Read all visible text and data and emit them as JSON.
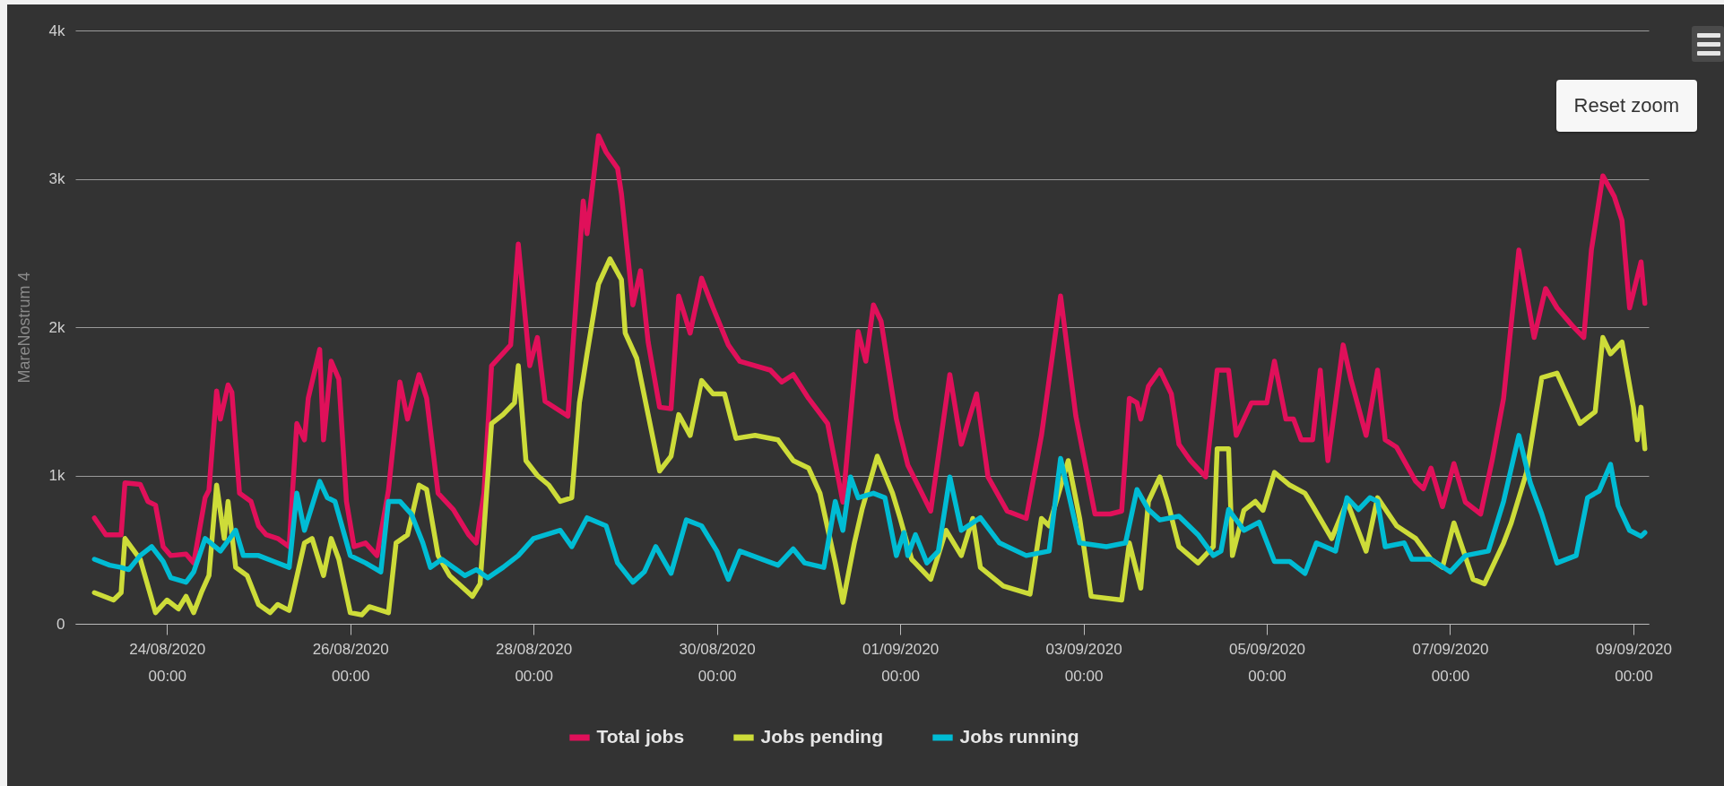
{
  "chart_data": {
    "type": "line",
    "ylabel": "MareNostrum 4",
    "annotations": [
      "Reset zoom"
    ],
    "xlim": [
      "2020-08-23T00:00",
      "2020-09-09T04:00"
    ],
    "xticks": [
      {
        "value": "2020-08-24T00:00",
        "label": "24/08/2020 00:00"
      },
      {
        "value": "2020-08-26T00:00",
        "label": "26/08/2020 00:00"
      },
      {
        "value": "2020-08-28T00:00",
        "label": "28/08/2020 00:00"
      },
      {
        "value": "2020-08-30T00:00",
        "label": "30/08/2020 00:00"
      },
      {
        "value": "2020-09-01T00:00",
        "label": "01/09/2020 00:00"
      },
      {
        "value": "2020-09-03T00:00",
        "label": "03/09/2020 00:00"
      },
      {
        "value": "2020-09-05T00:00",
        "label": "05/09/2020 00:00"
      },
      {
        "value": "2020-09-07T00:00",
        "label": "07/09/2020 00:00"
      },
      {
        "value": "2020-09-09T00:00",
        "label": "09/09/2020 00:00"
      }
    ],
    "ylim": [
      0,
      4000
    ],
    "yticks": [
      0,
      {
        "value": 1000,
        "label": "1k"
      },
      {
        "value": 2000,
        "label": "2k"
      },
      {
        "value": 3000,
        "label": "3k"
      },
      {
        "value": 4000,
        "label": "4k"
      }
    ],
    "grid": "y",
    "legend": "bottom",
    "series": [
      {
        "name": "Total jobs",
        "color": "#e0105a",
        "x": [
          "2020-08-23T05:00",
          "2020-08-23T08:00",
          "2020-08-23T12:00",
          "2020-08-23T13:00",
          "2020-08-23T17:00",
          "2020-08-23T19:00",
          "2020-08-23T21:00",
          "2020-08-23T23:00",
          "2020-08-24T01:00",
          "2020-08-24T05:00",
          "2020-08-24T07:00",
          "2020-08-24T10:00",
          "2020-08-24T11:00",
          "2020-08-24T13:00",
          "2020-08-24T14:00",
          "2020-08-24T16:00",
          "2020-08-24T17:00",
          "2020-08-24T19:00",
          "2020-08-24T22:00",
          "2020-08-25T00:00",
          "2020-08-25T02:00",
          "2020-08-25T05:00",
          "2020-08-25T08:00",
          "2020-08-25T10:00",
          "2020-08-25T12:00",
          "2020-08-25T13:00",
          "2020-08-25T16:00",
          "2020-08-25T17:00",
          "2020-08-25T19:00",
          "2020-08-25T21:00",
          "2020-08-25T23:00",
          "2020-08-26T01:00",
          "2020-08-26T04:00",
          "2020-08-26T07:00",
          "2020-08-26T10:00",
          "2020-08-26T13:00",
          "2020-08-26T15:00",
          "2020-08-26T18:00",
          "2020-08-26T20:00",
          "2020-08-26T23:00",
          "2020-08-27T03:00",
          "2020-08-27T07:00",
          "2020-08-27T09:00",
          "2020-08-27T11:00",
          "2020-08-27T13:00",
          "2020-08-27T18:00",
          "2020-08-27T20:00",
          "2020-08-27T23:00",
          "2020-08-28T01:00",
          "2020-08-28T03:00",
          "2020-08-28T06:00",
          "2020-08-28T09:00",
          "2020-08-28T13:00",
          "2020-08-28T14:00",
          "2020-08-28T17:00",
          "2020-08-28T19:00",
          "2020-08-28T22:00",
          "2020-08-28T23:00",
          "2020-08-29T02:00",
          "2020-08-29T04:00",
          "2020-08-29T06:00",
          "2020-08-29T09:00",
          "2020-08-29T12:00",
          "2020-08-29T14:00",
          "2020-08-29T17:00",
          "2020-08-29T20:00",
          "2020-08-29T23:00",
          "2020-08-30T03:00",
          "2020-08-30T06:00",
          "2020-08-30T14:00",
          "2020-08-30T17:00",
          "2020-08-30T20:00",
          "2020-08-31T00:00",
          "2020-08-31T05:00",
          "2020-08-31T09:00",
          "2020-08-31T13:00",
          "2020-08-31T15:00",
          "2020-08-31T17:00",
          "2020-08-31T19:00",
          "2020-08-31T23:00",
          "2020-09-01T02:00",
          "2020-09-01T08:00",
          "2020-09-01T13:00",
          "2020-09-01T16:00",
          "2020-09-01T20:00",
          "2020-09-01T23:00",
          "2020-09-02T04:00",
          "2020-09-02T09:00",
          "2020-09-02T13:00",
          "2020-09-02T18:00",
          "2020-09-02T22:00",
          "2020-09-03T03:00",
          "2020-09-03T07:00",
          "2020-09-03T10:00",
          "2020-09-03T12:00",
          "2020-09-03T14:00",
          "2020-09-03T15:00",
          "2020-09-03T17:00",
          "2020-09-03T20:00",
          "2020-09-03T23:00",
          "2020-09-04T01:00",
          "2020-09-04T04:00",
          "2020-09-04T08:00",
          "2020-09-04T11:00",
          "2020-09-04T14:00",
          "2020-09-04T16:00",
          "2020-09-04T20:00",
          "2020-09-05T00:00",
          "2020-09-05T02:00",
          "2020-09-05T05:00",
          "2020-09-05T07:00",
          "2020-09-05T09:00",
          "2020-09-05T12:00",
          "2020-09-05T14:00",
          "2020-09-05T16:00",
          "2020-09-05T20:00",
          "2020-09-05T22:00",
          "2020-09-06T02:00",
          "2020-09-06T05:00",
          "2020-09-06T07:00",
          "2020-09-06T10:00",
          "2020-09-06T15:00",
          "2020-09-06T17:00",
          "2020-09-06T19:00",
          "2020-09-06T22:00",
          "2020-09-07T01:00",
          "2020-09-07T04:00",
          "2020-09-07T08:00",
          "2020-09-07T11:00",
          "2020-09-07T14:00",
          "2020-09-07T18:00",
          "2020-09-07T22:00",
          "2020-09-08T01:00",
          "2020-09-08T04:00",
          "2020-09-08T08:00",
          "2020-09-08T11:00",
          "2020-09-08T13:00",
          "2020-09-08T16:00",
          "2020-09-08T19:00",
          "2020-09-08T21:00",
          "2020-09-08T23:00",
          "2020-09-09T02:00",
          "2020-09-09T03:00"
        ],
        "values": [
          713,
          600,
          600,
          950,
          940,
          825,
          800,
          520,
          460,
          470,
          410,
          850,
          900,
          1570,
          1380,
          1610,
          1560,
          880,
          825,
          660,
          600,
          575,
          520,
          1350,
          1240,
          1520,
          1850,
          1240,
          1770,
          1650,
          825,
          520,
          545,
          460,
          900,
          1630,
          1380,
          1680,
          1520,
          880,
          770,
          600,
          545,
          880,
          1740,
          1880,
          2560,
          1740,
          1930,
          1500,
          1450,
          1400,
          2850,
          2630,
          3290,
          3180,
          3070,
          2900,
          2150,
          2380,
          1900,
          1460,
          1450,
          2210,
          1960,
          2330,
          2130,
          1880,
          1770,
          1710,
          1630,
          1680,
          1520,
          1350,
          820,
          1970,
          1770,
          2150,
          2040,
          1380,
          1070,
          760,
          1680,
          1210,
          1550,
          990,
          760,
          710,
          1270,
          2210,
          1400,
          740,
          740,
          760,
          1520,
          1490,
          1380,
          1600,
          1710,
          1550,
          1210,
          1100,
          990,
          1710,
          1710,
          1270,
          1490,
          1490,
          1770,
          1380,
          1380,
          1240,
          1240,
          1710,
          1100,
          1880,
          1650,
          1270,
          1710,
          1240,
          1190,
          960,
          910,
          1050,
          790,
          1080,
          820,
          740,
          1100,
          1520,
          2520,
          1930,
          2260,
          2130,
          2010,
          1930,
          2520,
          3020,
          2880,
          2720,
          2130,
          2440,
          2160
        ]
      },
      {
        "name": "Jobs pending",
        "color": "#cddc39",
        "x": [
          "2020-08-23T05:00",
          "2020-08-23T10:00",
          "2020-08-23T12:00",
          "2020-08-23T13:00",
          "2020-08-23T17:00",
          "2020-08-23T21:00",
          "2020-08-24T00:00",
          "2020-08-24T03:00",
          "2020-08-24T05:00",
          "2020-08-24T07:00",
          "2020-08-24T09:00",
          "2020-08-24T11:00",
          "2020-08-24T13:00",
          "2020-08-24T15:00",
          "2020-08-24T16:00",
          "2020-08-24T18:00",
          "2020-08-24T21:00",
          "2020-08-25T00:00",
          "2020-08-25T03:00",
          "2020-08-25T05:00",
          "2020-08-25T08:00",
          "2020-08-25T12:00",
          "2020-08-25T14:00",
          "2020-08-25T17:00",
          "2020-08-25T19:00",
          "2020-08-25T21:00",
          "2020-08-26T00:00",
          "2020-08-26T03:00",
          "2020-08-26T05:00",
          "2020-08-26T10:00",
          "2020-08-26T12:00",
          "2020-08-26T15:00",
          "2020-08-26T18:00",
          "2020-08-26T20:00",
          "2020-08-26T23:00",
          "2020-08-27T02:00",
          "2020-08-27T08:00",
          "2020-08-27T10:00",
          "2020-08-27T13:00",
          "2020-08-27T16:00",
          "2020-08-27T19:00",
          "2020-08-27T20:00",
          "2020-08-27T22:00",
          "2020-08-28T01:00",
          "2020-08-28T04:00",
          "2020-08-28T07:00",
          "2020-08-28T10:00",
          "2020-08-28T12:00",
          "2020-08-28T14:00",
          "2020-08-28T17:00",
          "2020-08-28T20:00",
          "2020-08-28T23:00",
          "2020-08-29T00:00",
          "2020-08-29T03:00",
          "2020-08-29T06:00",
          "2020-08-29T09:00",
          "2020-08-29T12:00",
          "2020-08-29T14:00",
          "2020-08-29T17:00",
          "2020-08-29T20:00",
          "2020-08-29T23:00",
          "2020-08-30T02:00",
          "2020-08-30T05:00",
          "2020-08-30T10:00",
          "2020-08-30T16:00",
          "2020-08-30T20:00",
          "2020-08-31T00:00",
          "2020-08-31T03:00",
          "2020-08-31T07:00",
          "2020-08-31T09:00",
          "2020-08-31T12:00",
          "2020-08-31T14:00",
          "2020-08-31T18:00",
          "2020-08-31T22:00",
          "2020-09-01T00:00",
          "2020-09-01T03:00",
          "2020-09-01T08:00",
          "2020-09-01T12:00",
          "2020-09-01T16:00",
          "2020-09-01T19:00",
          "2020-09-01T21:00",
          "2020-09-02T03:00",
          "2020-09-02T10:00",
          "2020-09-02T13:00",
          "2020-09-02T15:00",
          "2020-09-02T20:00",
          "2020-09-02T23:00",
          "2020-09-03T02:00",
          "2020-09-03T10:00",
          "2020-09-03T12:00",
          "2020-09-03T15:00",
          "2020-09-03T17:00",
          "2020-09-03T20:00",
          "2020-09-03T22:00",
          "2020-09-04T01:00",
          "2020-09-04T06:00",
          "2020-09-04T10:00",
          "2020-09-04T11:00",
          "2020-09-04T14:00",
          "2020-09-04T15:00",
          "2020-09-04T18:00",
          "2020-09-04T21:00",
          "2020-09-04T23:00",
          "2020-09-05T02:00",
          "2020-09-05T06:00",
          "2020-09-05T10:00",
          "2020-09-05T12:00",
          "2020-09-05T17:00",
          "2020-09-05T21:00",
          "2020-09-06T02:00",
          "2020-09-06T05:00",
          "2020-09-06T10:00",
          "2020-09-06T15:00",
          "2020-09-06T19:00",
          "2020-09-06T22:00",
          "2020-09-07T01:00",
          "2020-09-07T06:00",
          "2020-09-07T09:00",
          "2020-09-07T14:00",
          "2020-09-07T16:00",
          "2020-09-07T20:00",
          "2020-09-08T00:00",
          "2020-09-08T04:00",
          "2020-09-08T07:00",
          "2020-09-08T10:00",
          "2020-09-08T14:00",
          "2020-09-08T16:00",
          "2020-09-08T18:00",
          "2020-09-08T21:00",
          "2020-09-09T00:00",
          "2020-09-09T01:00",
          "2020-09-09T02:00",
          "2020-09-09T03:00"
        ],
        "values": [
          210,
          160,
          210,
          575,
          435,
          75,
          160,
          100,
          185,
          75,
          210,
          325,
          935,
          575,
          825,
          380,
          325,
          130,
          75,
          130,
          90,
          545,
          575,
          325,
          575,
          435,
          75,
          60,
          115,
          75,
          545,
          600,
          935,
          905,
          460,
          325,
          185,
          270,
          1350,
          1410,
          1490,
          1740,
          1100,
          1000,
          935,
          825,
          850,
          1490,
          1820,
          2290,
          2460,
          2320,
          1960,
          1790,
          1410,
          1030,
          1130,
          1410,
          1270,
          1640,
          1550,
          1550,
          1250,
          1270,
          1240,
          1100,
          1050,
          880,
          410,
          145,
          545,
          770,
          1130,
          880,
          710,
          435,
          300,
          630,
          460,
          710,
          380,
          255,
          200,
          710,
          660,
          1100,
          710,
          185,
          160,
          545,
          240,
          825,
          990,
          825,
          520,
          410,
          520,
          1180,
          1180,
          460,
          765,
          825,
          765,
          1020,
          935,
          880,
          795,
          575,
          825,
          490,
          850,
          660,
          575,
          435,
          380,
          680,
          300,
          270,
          545,
          680,
          1020,
          1660,
          1690,
          1520,
          1350,
          1430,
          1930,
          1820,
          1900,
          1460,
          1240,
          1460,
          1180
        ]
      },
      {
        "name": "Jobs running",
        "color": "#00bcd4",
        "x": [
          "2020-08-23T05:00",
          "2020-08-23T09:00",
          "2020-08-23T12:00",
          "2020-08-23T14:00",
          "2020-08-23T17:00",
          "2020-08-23T20:00",
          "2020-08-23T23:00",
          "2020-08-24T01:00",
          "2020-08-24T05:00",
          "2020-08-24T07:00",
          "2020-08-24T10:00",
          "2020-08-24T14:00",
          "2020-08-24T18:00",
          "2020-08-24T20:00",
          "2020-08-25T00:00",
          "2020-08-25T04:00",
          "2020-08-25T08:00",
          "2020-08-25T10:00",
          "2020-08-25T12:00",
          "2020-08-25T16:00",
          "2020-08-25T18:00",
          "2020-08-25T20:00",
          "2020-08-26T00:00",
          "2020-08-26T04:00",
          "2020-08-26T08:00",
          "2020-08-26T10:00",
          "2020-08-26T13:00",
          "2020-08-26T16:00",
          "2020-08-26T19:00",
          "2020-08-26T21:00",
          "2020-08-27T00:00",
          "2020-08-27T06:00",
          "2020-08-27T09:00",
          "2020-08-27T12:00",
          "2020-08-27T16:00",
          "2020-08-27T20:00",
          "2020-08-28T00:00",
          "2020-08-28T07:00",
          "2020-08-28T10:00",
          "2020-08-28T14:00",
          "2020-08-28T19:00",
          "2020-08-28T22:00",
          "2020-08-29T02:00",
          "2020-08-29T05:00",
          "2020-08-29T08:00",
          "2020-08-29T12:00",
          "2020-08-29T16:00",
          "2020-08-29T20:00",
          "2020-08-30T00:00",
          "2020-08-30T03:00",
          "2020-08-30T06:00",
          "2020-08-30T16:00",
          "2020-08-30T20:00",
          "2020-08-30T23:00",
          "2020-08-31T04:00",
          "2020-08-31T07:00",
          "2020-08-31T09:00",
          "2020-08-31T11:00",
          "2020-08-31T13:00",
          "2020-08-31T17:00",
          "2020-08-31T20:00",
          "2020-08-31T23:00",
          "2020-09-01T01:00",
          "2020-09-01T02:00",
          "2020-09-01T04:00",
          "2020-09-01T07:00",
          "2020-09-01T10:00",
          "2020-09-01T13:00",
          "2020-09-01T16:00",
          "2020-09-01T21:00",
          "2020-09-02T02:00",
          "2020-09-02T09:00",
          "2020-09-02T15:00",
          "2020-09-02T18:00",
          "2020-09-02T23:00",
          "2020-09-03T06:00",
          "2020-09-03T11:00",
          "2020-09-03T14:00",
          "2020-09-03T17:00",
          "2020-09-03T20:00",
          "2020-09-04T01:00",
          "2020-09-04T06:00",
          "2020-09-04T10:00",
          "2020-09-04T12:00",
          "2020-09-04T14:00",
          "2020-09-04T18:00",
          "2020-09-04T22:00",
          "2020-09-05T02:00",
          "2020-09-05T06:00",
          "2020-09-05T10:00",
          "2020-09-05T13:00",
          "2020-09-05T18:00",
          "2020-09-05T21:00",
          "2020-09-06T00:00",
          "2020-09-06T03:00",
          "2020-09-06T05:00",
          "2020-09-06T07:00",
          "2020-09-06T12:00",
          "2020-09-06T14:00",
          "2020-09-06T19:00",
          "2020-09-07T00:00",
          "2020-09-07T04:00",
          "2020-09-07T10:00",
          "2020-09-07T14:00",
          "2020-09-07T18:00",
          "2020-09-07T21:00",
          "2020-09-08T00:00",
          "2020-09-08T04:00",
          "2020-09-08T09:00",
          "2020-09-08T12:00",
          "2020-09-08T15:00",
          "2020-09-08T18:00",
          "2020-09-08T20:00",
          "2020-09-08T23:00",
          "2020-09-09T02:00",
          "2020-09-09T03:00"
        ],
        "values": [
          435,
          395,
          380,
          365,
          460,
          520,
          420,
          310,
          280,
          350,
          575,
          490,
          630,
          460,
          460,
          420,
          380,
          880,
          630,
          960,
          850,
          825,
          460,
          410,
          350,
          825,
          825,
          740,
          545,
          380,
          435,
          325,
          365,
          310,
          380,
          460,
          575,
          630,
          520,
          715,
          660,
          410,
          280,
          350,
          520,
          340,
          700,
          660,
          490,
          300,
          490,
          395,
          505,
          410,
          380,
          825,
          630,
          990,
          850,
          880,
          850,
          460,
          615,
          460,
          600,
          410,
          490,
          990,
          630,
          715,
          545,
          460,
          490,
          1115,
          545,
          520,
          545,
          905,
          770,
          700,
          725,
          600,
          460,
          490,
          770,
          630,
          685,
          420,
          420,
          340,
          545,
          490,
          850,
          770,
          850,
          825,
          520,
          545,
          435,
          435,
          350,
          460,
          490,
          825,
          1270,
          950,
          740,
          410,
          460,
          850,
          895,
          1075,
          795,
          630,
          590,
          615
        ]
      }
    ]
  }
}
